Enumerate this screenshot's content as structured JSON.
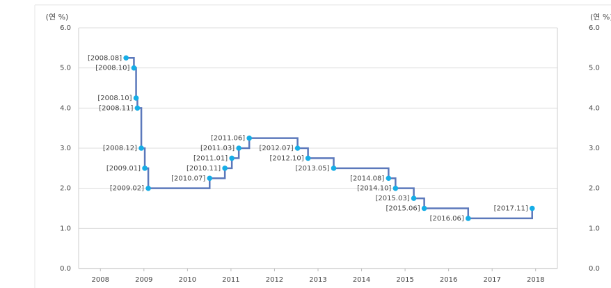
{
  "chart_data": {
    "type": "step",
    "y_label": "(연 %)",
    "x": [
      2008.59,
      2008.77,
      2008.82,
      2008.85,
      2008.94,
      2009.02,
      2009.1,
      2010.51,
      2010.86,
      2011.02,
      2011.18,
      2011.42,
      2012.53,
      2012.77,
      2013.36,
      2014.62,
      2014.78,
      2015.2,
      2015.44,
      2016.45,
      2017.92
    ],
    "values": [
      5.25,
      5.0,
      4.25,
      4.0,
      3.0,
      2.5,
      2.0,
      2.25,
      2.5,
      2.75,
      3.0,
      3.25,
      3.0,
      2.75,
      2.5,
      2.25,
      2.0,
      1.75,
      1.5,
      1.25,
      1.5
    ],
    "point_labels": [
      "[2008.08]",
      "[2008.10]",
      "[2008.10]",
      "[2008.11]",
      "[2008.12]",
      "[2009.01]",
      "[2009.02]",
      "[2010.07]",
      "[2010.11]",
      "[2011.01]",
      "[2011.03]",
      "[2011.06]",
      "[2012.07]",
      "[2012.10]",
      "[2013.05]",
      "[2014.08]",
      "[2014.10]",
      "[2015.03]",
      "[2015.06]",
      "[2016.06]",
      "[2017.11]"
    ],
    "line_color": "#5b78bb",
    "point_color": "#16ade6",
    "xlim": [
      2007.5,
      2018.5
    ],
    "xticks": [
      2008,
      2009,
      2010,
      2011,
      2012,
      2013,
      2014,
      2015,
      2016,
      2017,
      2018
    ],
    "ylim": [
      0,
      6
    ],
    "yticks": [
      {
        "value": 0,
        "label": "0.0"
      },
      {
        "value": 1,
        "label": "1.0"
      },
      {
        "value": 2,
        "label": "2.0"
      },
      {
        "value": 3,
        "label": "3.0"
      },
      {
        "value": 4,
        "label": "4.0"
      },
      {
        "value": 5,
        "label": "5.0"
      },
      {
        "value": 6,
        "label": "6.0"
      }
    ],
    "grid": true
  }
}
